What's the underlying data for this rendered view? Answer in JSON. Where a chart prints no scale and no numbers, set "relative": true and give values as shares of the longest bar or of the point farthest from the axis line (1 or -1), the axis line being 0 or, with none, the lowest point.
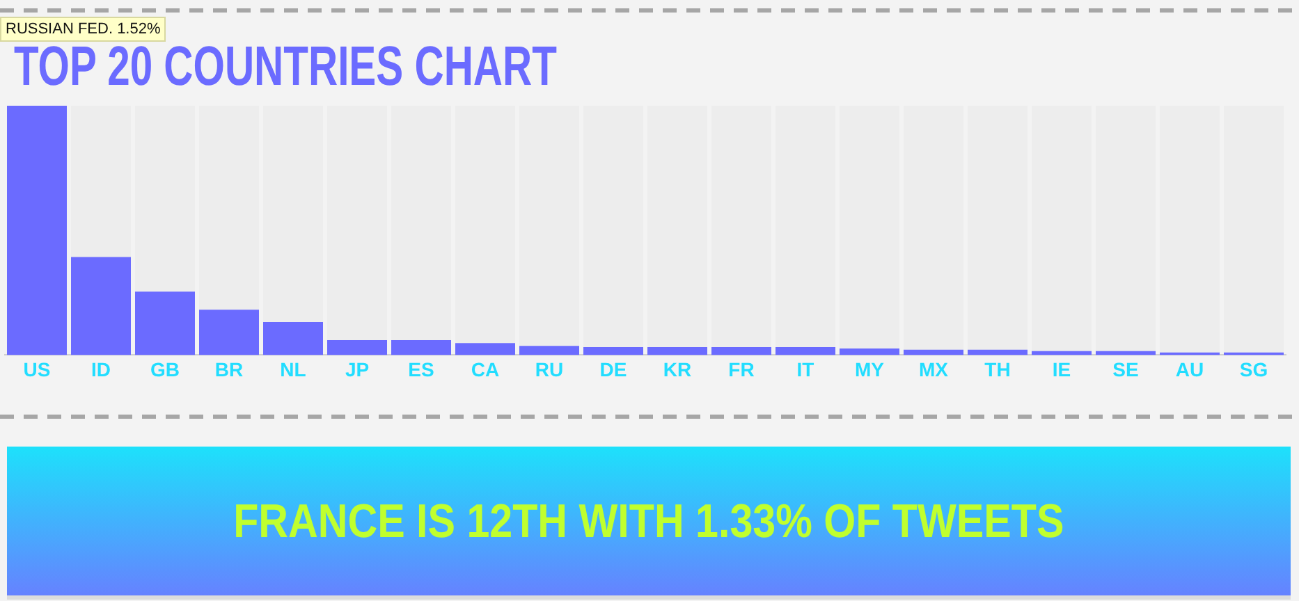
{
  "chart_data": {
    "type": "bar",
    "title": "TOP 20 COUNTRIES CHART",
    "categories": [
      "US",
      "ID",
      "GB",
      "BR",
      "NL",
      "JP",
      "ES",
      "CA",
      "RU",
      "DE",
      "KR",
      "FR",
      "IT",
      "MY",
      "MX",
      "TH",
      "IE",
      "SE",
      "AU",
      "SG"
    ],
    "values": [
      1,
      0.393,
      0.254,
      0.182,
      0.132,
      0.06,
      0.06,
      0.048,
      0.037,
      0.032,
      0.032,
      0.032,
      0.032,
      0.026,
      0.021,
      0.021,
      0.016,
      0.016,
      0.01,
      0.01
    ],
    "color": "#6b6bff",
    "relative": true,
    "annotations": [
      "RUSSIAN FED. 1.52%",
      "FRANCE IS 12TH WITH 1.33% OF TWEETS"
    ]
  }
}
